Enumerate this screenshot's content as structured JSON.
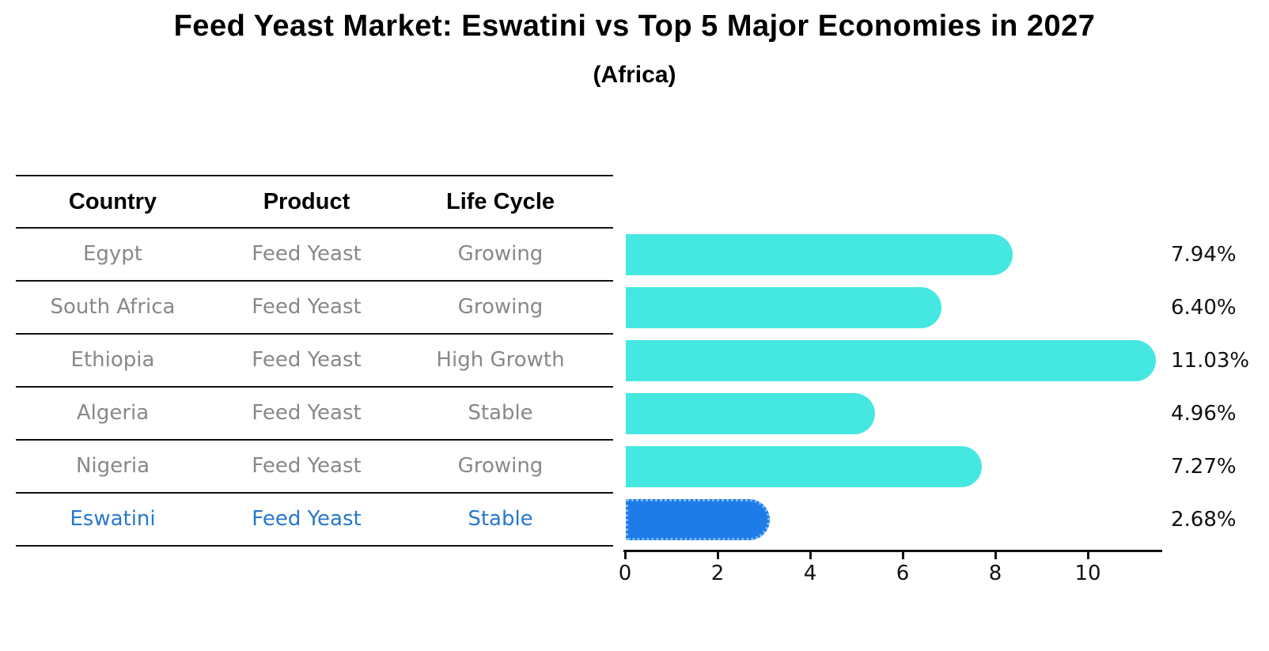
{
  "header": {
    "title": "Feed Yeast Market: Eswatini vs Top 5 Major Economies in 2027",
    "subtitle": "(Africa)"
  },
  "table": {
    "columns": [
      "Country",
      "Product",
      "Life Cycle"
    ],
    "rows": [
      {
        "country": "Egypt",
        "product": "Feed Yeast",
        "life_cycle": "Growing",
        "value": 7.94,
        "value_label": "7.94%",
        "highlight": false
      },
      {
        "country": "South Africa",
        "product": "Feed Yeast",
        "life_cycle": "Growing",
        "value": 6.4,
        "value_label": "6.40%",
        "highlight": false
      },
      {
        "country": "Ethiopia",
        "product": "Feed Yeast",
        "life_cycle": "High Growth",
        "value": 11.03,
        "value_label": "11.03%",
        "highlight": false
      },
      {
        "country": "Algeria",
        "product": "Feed Yeast",
        "life_cycle": "Stable",
        "value": 4.96,
        "value_label": "4.96%",
        "highlight": false
      },
      {
        "country": "Nigeria",
        "product": "Feed Yeast",
        "life_cycle": "Growing",
        "value": 7.27,
        "value_label": "7.27%",
        "highlight": false
      },
      {
        "country": "Eswatini",
        "product": "Feed Yeast",
        "life_cycle": "Stable",
        "value": 2.68,
        "value_label": "2.68%",
        "highlight": true
      }
    ]
  },
  "chart_data": {
    "type": "bar",
    "orientation": "horizontal",
    "title": "Feed Yeast Market: Eswatini vs Top 5 Major Economies in 2027",
    "subtitle": "(Africa)",
    "categories": [
      "Egypt",
      "South Africa",
      "Ethiopia",
      "Algeria",
      "Nigeria",
      "Eswatini"
    ],
    "values": [
      7.94,
      6.4,
      11.03,
      4.96,
      7.27,
      2.68
    ],
    "data_labels": [
      "7.94%",
      "6.40%",
      "11.03%",
      "4.96%",
      "7.27%",
      "2.68%"
    ],
    "xlabel": "",
    "ylabel": "",
    "xlim": [
      0,
      11.6
    ],
    "xticks": [
      0,
      2,
      4,
      6,
      8,
      10
    ],
    "grid": false,
    "legend": false,
    "highlight_index": 5
  },
  "colors": {
    "bar": "#45e8e0",
    "highlight_bar": "#1e7ce8",
    "highlight_border": "#7db9f2",
    "row_text": "#888888",
    "highlight_text": "#2878cc",
    "axis": "#111111"
  }
}
